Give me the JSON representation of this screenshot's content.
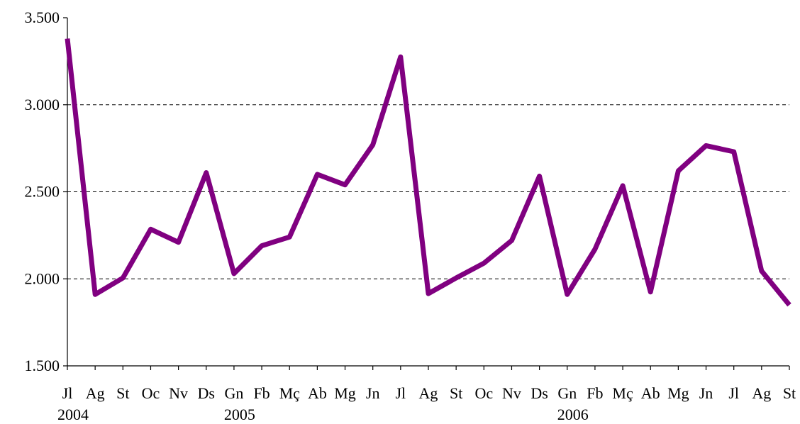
{
  "chart_data": {
    "type": "line",
    "title": "",
    "xlabel": "",
    "ylabel": "",
    "ylim": [
      1500,
      3500
    ],
    "y_ticks": [
      1500,
      2000,
      2500,
      3000,
      3500
    ],
    "y_tick_labels": [
      "1.500",
      "2.000",
      "2.500",
      "3.000",
      "3.500"
    ],
    "grid": "horizontal dashed",
    "categories": [
      "Jl",
      "Ag",
      "St",
      "Oc",
      "Nv",
      "Ds",
      "Gn",
      "Fb",
      "Mç",
      "Ab",
      "Mg",
      "Jn",
      "Jl",
      "Ag",
      "St",
      "Oc",
      "Nv",
      "Ds",
      "Gn",
      "Fb",
      "Mç",
      "Ab",
      "Mg",
      "Jn",
      "Jl",
      "Ag",
      "St"
    ],
    "year_labels": [
      {
        "label": "2004",
        "index": 0
      },
      {
        "label": "2005",
        "index": 6
      },
      {
        "label": "2006",
        "index": 18
      }
    ],
    "series": [
      {
        "color": "#800080",
        "values": [
          3380,
          1910,
          2005,
          2285,
          2210,
          2610,
          2030,
          2190,
          2240,
          2600,
          2540,
          2770,
          3275,
          1915,
          2005,
          2090,
          2220,
          2590,
          1910,
          2170,
          2535,
          1925,
          2620,
          2765,
          2730,
          2045,
          1850
        ]
      }
    ]
  }
}
